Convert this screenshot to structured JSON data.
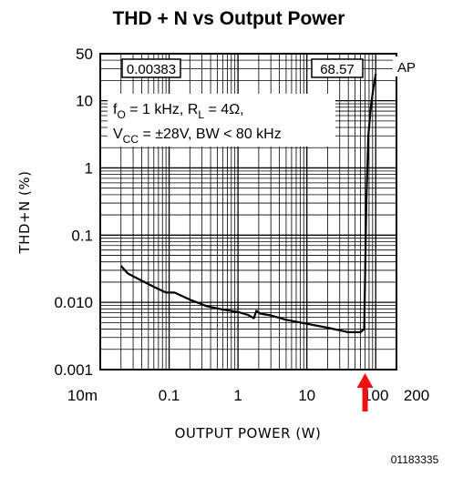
{
  "chart_data": {
    "type": "line",
    "title": "THD + N vs Output Power",
    "xlabel": "OUTPUT POWER (W)",
    "ylabel": "THD+N (%)",
    "x_scale": "log",
    "y_scale": "log",
    "xlim": [
      0.01,
      200
    ],
    "ylim": [
      0.001,
      50
    ],
    "x_ticks": [
      "10m",
      "0.1",
      "1",
      "10",
      "100",
      "200"
    ],
    "x_tick_values": [
      0.01,
      0.1,
      1,
      10,
      100,
      200
    ],
    "y_ticks": [
      "0.001",
      "0.010",
      "0.1",
      "1",
      "10",
      "50"
    ],
    "y_tick_values": [
      0.001,
      0.01,
      0.1,
      1,
      10,
      50
    ],
    "grid": true,
    "series": [
      {
        "x": [
          0.02,
          0.025,
          0.04,
          0.06,
          0.09,
          0.12,
          0.2,
          0.35,
          0.6,
          1.0,
          1.4,
          1.7,
          1.85,
          2.1,
          3,
          5,
          10,
          20,
          40,
          60,
          68,
          70,
          73,
          78,
          85,
          92,
          100
        ],
        "y": [
          0.035,
          0.027,
          0.021,
          0.017,
          0.014,
          0.014,
          0.011,
          0.0088,
          0.0078,
          0.0072,
          0.0065,
          0.0058,
          0.0075,
          0.0068,
          0.0064,
          0.0055,
          0.0048,
          0.0042,
          0.0036,
          0.0036,
          0.004,
          0.02,
          0.3,
          3,
          8,
          15,
          25
        ]
      }
    ],
    "annotations": {
      "readout_left": "0.00383",
      "readout_right": "68.57",
      "logo": "AP",
      "conditions_line1": [
        "f",
        "O",
        " = 1 kHz, R",
        "L",
        " = 4Ω,"
      ],
      "conditions_line2": [
        "V",
        "CC",
        " = ±28V, BW < 80 kHz"
      ],
      "figure_id": "01183335"
    },
    "marker_arrow": {
      "x": 70,
      "color": "#ee1111"
    }
  }
}
